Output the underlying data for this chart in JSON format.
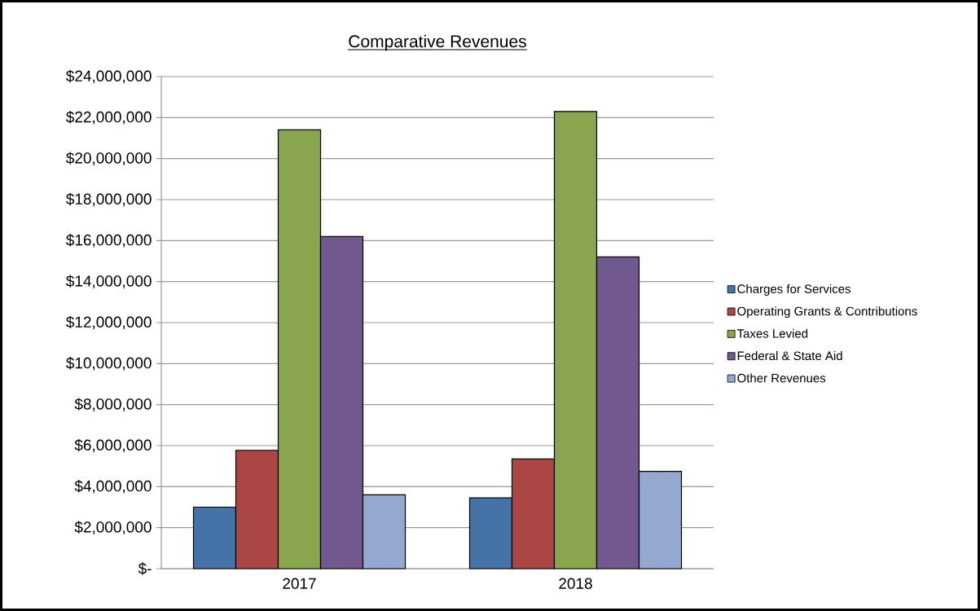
{
  "chart_data": {
    "type": "bar",
    "title": "Comparative Revenues",
    "categories": [
      "2017",
      "2018"
    ],
    "series": [
      {
        "name": "Charges for Services",
        "color": "#4572a7",
        "values": [
          3000000,
          3450000
        ]
      },
      {
        "name": "Operating Grants & Contributions",
        "color": "#aa4643",
        "values": [
          5770000,
          5350000
        ]
      },
      {
        "name": "Taxes Levied",
        "color": "#89a54e",
        "values": [
          21400000,
          22300000
        ]
      },
      {
        "name": "Federal & State Aid",
        "color": "#71588f",
        "values": [
          16200000,
          15200000
        ]
      },
      {
        "name": "Other Revenues",
        "color": "#93a9cf",
        "values": [
          3600000,
          4740000
        ]
      }
    ],
    "ylim": [
      0,
      24000000
    ],
    "yticks": [
      {
        "value": 0,
        "label": "$-"
      },
      {
        "value": 2000000,
        "label": "$2,000,000"
      },
      {
        "value": 4000000,
        "label": "$4,000,000"
      },
      {
        "value": 6000000,
        "label": "$6,000,000"
      },
      {
        "value": 8000000,
        "label": "$8,000,000"
      },
      {
        "value": 10000000,
        "label": "$10,000,000"
      },
      {
        "value": 12000000,
        "label": "$12,000,000"
      },
      {
        "value": 14000000,
        "label": "$14,000,000"
      },
      {
        "value": 16000000,
        "label": "$16,000,000"
      },
      {
        "value": 18000000,
        "label": "$18,000,000"
      },
      {
        "value": 20000000,
        "label": "$20,000,000"
      },
      {
        "value": 22000000,
        "label": "$22,000,000"
      },
      {
        "value": 24000000,
        "label": "$24,000,000"
      }
    ],
    "grid": "y",
    "legend": "right"
  }
}
